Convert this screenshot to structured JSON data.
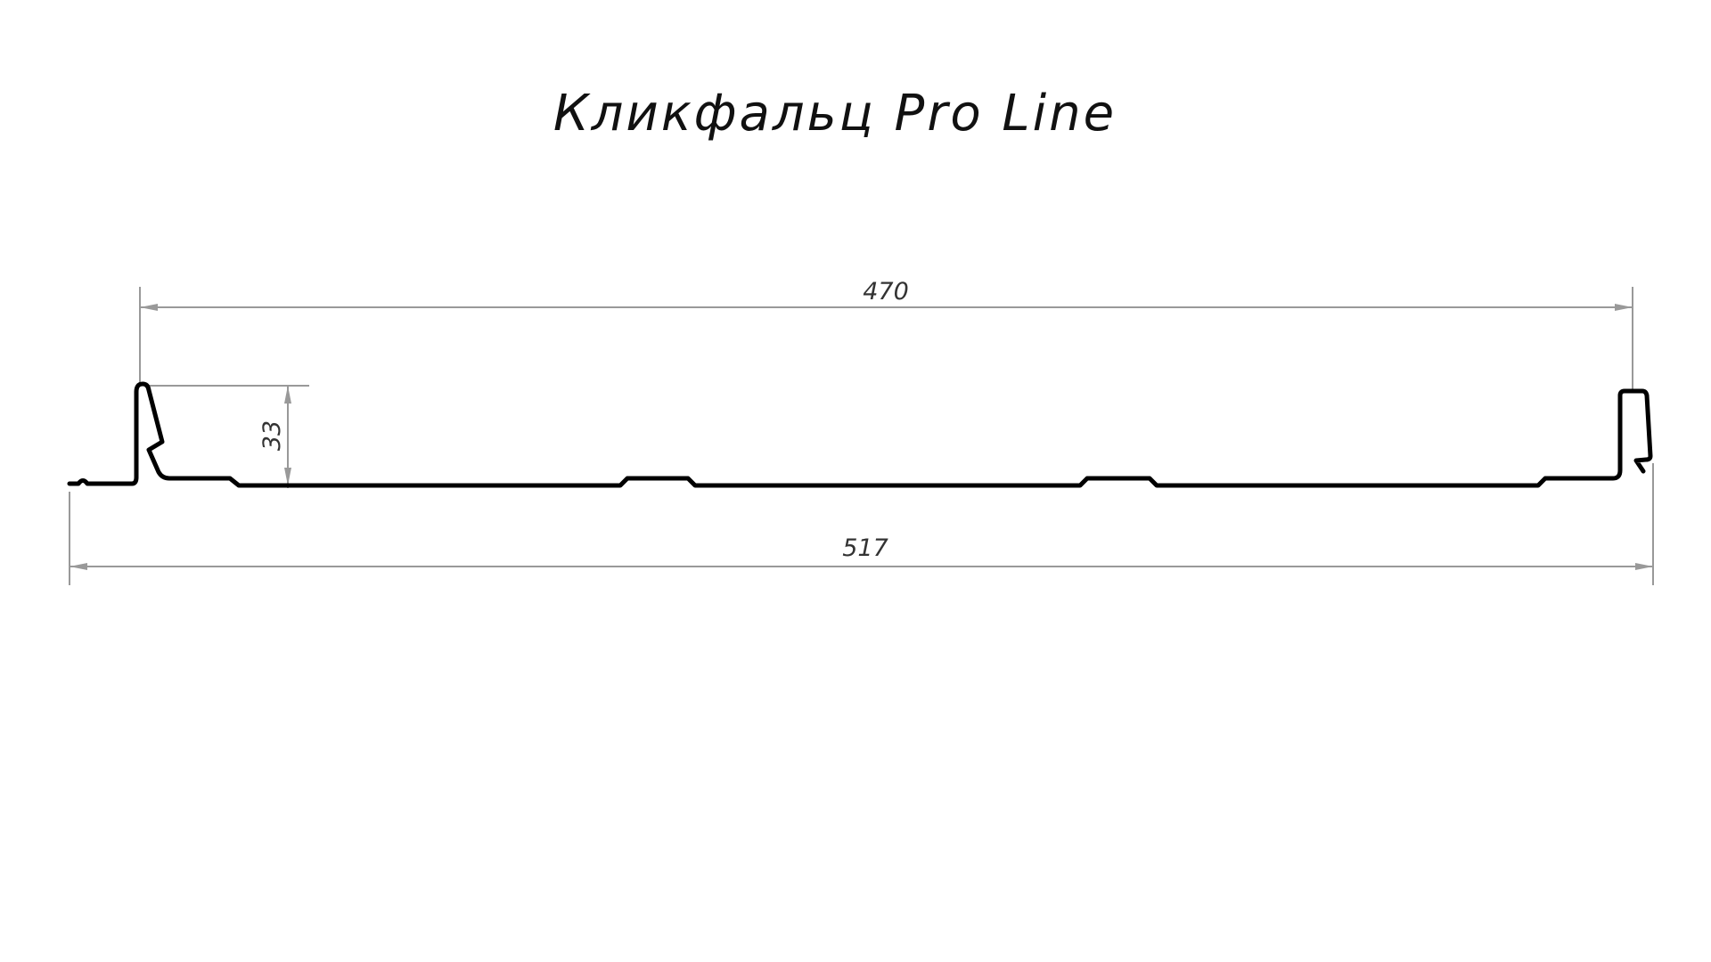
{
  "title": "Кликфальц Pro Line",
  "dimensions": {
    "cover_width": "470",
    "total_width": "517",
    "seam_height": "33"
  },
  "colors": {
    "profile": "#000000",
    "dimension_lines": "#999999"
  }
}
